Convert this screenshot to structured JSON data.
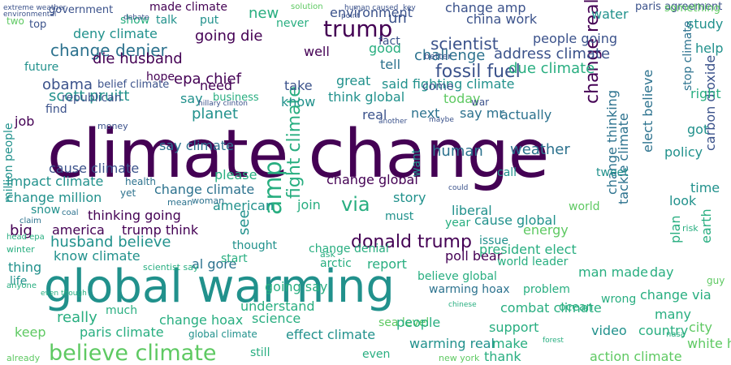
{
  "words": {
    "climate_change": "climate change",
    "global_warming": "global warming",
    "believe_climate": "believe climate",
    "trump": "trump",
    "donald_trump": "donald trump",
    "amp": "amp",
    "change_denier": "change denier",
    "fight_climate": "fight climate",
    "change_real": "change real",
    "fossil_fuel": "fossil fuel",
    "scientist": "scientist",
    "paris_agreement": "paris agreement",
    "carbon_dioxide": "carbon dioxide",
    "epa_chief": "epa chief",
    "scott_pruitt": "scott pruitt",
    "going_die": "going die",
    "die_husband": "die husband",
    "husband_believe": "husband believe",
    "obama": "obama",
    "cause_climate": "cause climate",
    "say_climate": "say climate",
    "change_climate": "change climate",
    "change_global": "change global",
    "thinking_going": "thinking going",
    "american": "american",
    "join": "join",
    "via": "via",
    "report": "report",
    "al_gore": "al gore",
    "arctic": "arctic",
    "change_denial": "change denial",
    "poll_bear": "poll bear",
    "president_elect": "president elect",
    "world_leader": "world leader",
    "man_made": "man made",
    "day": "day",
    "combat_climate": "combat climate",
    "video": "video",
    "country": "country",
    "city": "city",
    "white_house": "white house",
    "action_climate": "action climate",
    "warming_hoax": "warming hoax",
    "warming_real": "warming real",
    "science": "science",
    "sea_level": "sea level",
    "people": "people",
    "effect_climate": "effect climate",
    "paris_climate": "paris climate",
    "global_climate": "global climate",
    "understand": "understand",
    "change_hoax": "change hoax",
    "really": "really",
    "much": "much",
    "keep": "keep",
    "thing": "thing",
    "life": "life",
    "big": "big",
    "america": "america",
    "trump_think": "trump think",
    "know_climate": "know climate",
    "start": "start",
    "impact_climate": "impact climate",
    "change_million": "change million",
    "snow": "snow",
    "job": "job",
    "million_people": "million people",
    "please": "please",
    "need": "need",
    "say": "say",
    "business": "business",
    "planet": "planet",
    "hope": "hope",
    "think_global": "think global",
    "said_fighting_climate": "said fighting climate",
    "great": "great",
    "today": "today",
    "address_climate": "address climate",
    "challenge": "challenge",
    "due_climate": "due climate",
    "better": "better",
    "china_work": "china work",
    "change_amp": "change amp",
    "environment": "environment",
    "made_climate": "made climate",
    "talk": "talk",
    "put": "put",
    "new": "new",
    "show": "show",
    "government": "government",
    "deny_climate": "deny climate",
    "top": "top",
    "future": "future",
    "water": "water",
    "something": "something",
    "study": "study",
    "help": "help",
    "right": "right",
    "got": "got",
    "policy": "policy",
    "time": "time",
    "look": "look",
    "earth": "earth",
    "plan": "plan",
    "energy": "energy",
    "world": "world",
    "cause_global": "cause global",
    "liberal": "liberal",
    "year": "year",
    "must": "must",
    "story": "story",
    "thought": "thought",
    "see": "see",
    "ask": "ask",
    "issue": "issue",
    "believe_global": "believe global",
    "problem": "problem",
    "wrong": "wrong",
    "change_via": "change via",
    "many": "many",
    "ocean": "ocean",
    "support": "support",
    "make": "make",
    "thank": "thank",
    "even": "even",
    "still": "still",
    "going_say": "going say",
    "human": "human",
    "weather": "weather",
    "tackle_climate": "tackle climate",
    "change_thinking": "change thinking",
    "elect_believe": "elect believe",
    "stop_climate": "stop climate",
    "next": "next",
    "actually": "actually",
    "say_mr": "say mr",
    "call": "call",
    "tweet": "tweet",
    "want": "want",
    "belief_climate": "belief climate",
    "republican": "republican",
    "find": "find",
    "tell": "tell",
    "well": "well",
    "good": "good",
    "fact": "fact",
    "come": "come",
    "take": "take",
    "know": "know",
    "real": "real",
    "people_going": "people going",
    "un": "un",
    "never": "never",
    "two": "two",
    "hillary_clinton": "hillary clinton",
    "new_york": "new york",
    "debate": "debate",
    "solution": "solution",
    "human_caused": "human caused",
    "point": "point",
    "key": "key",
    "mean": "mean",
    "woman": "woman",
    "money": "money",
    "health": "health",
    "yet": "yet",
    "could": "could",
    "chinese": "chinese",
    "another": "another",
    "maybe": "maybe",
    "war": "war",
    "nasa": "nasa",
    "forest": "forest",
    "already": "already",
    "anyone": "anyone",
    "even_though": "even though",
    "winter": "winter",
    "head_epa": "head epa",
    "claim": "claim",
    "coal": "coal",
    "guy": "guy",
    "scientist_say": "scientist say",
    "risk": "risk",
    "extreme_weather": "extreme weather",
    "environmental": "environmental"
  }
}
